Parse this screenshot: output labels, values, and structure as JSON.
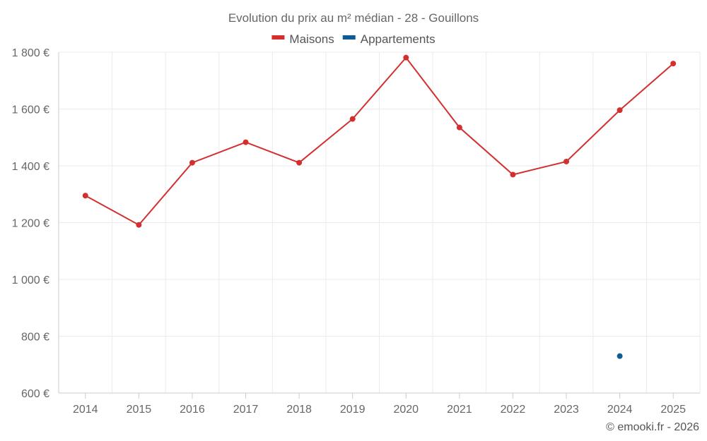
{
  "chart_data": {
    "type": "line",
    "title": "Evolution du prix au m² médian - 28 - Gouillons",
    "categories": [
      "2014",
      "2015",
      "2016",
      "2017",
      "2018",
      "2019",
      "2020",
      "2021",
      "2022",
      "2023",
      "2024",
      "2025"
    ],
    "series": [
      {
        "name": "Maisons",
        "color": "#d32f2f",
        "values": [
          1295,
          1192,
          1411,
          1483,
          1411,
          1565,
          1781,
          1535,
          1369,
          1415,
          1596,
          1760
        ]
      },
      {
        "name": "Appartements",
        "color": "#0b5c99",
        "values": [
          null,
          null,
          null,
          null,
          null,
          null,
          null,
          null,
          null,
          null,
          730,
          null
        ]
      }
    ],
    "ylim": [
      600,
      1800
    ],
    "y_ticks": [
      600,
      800,
      1000,
      1200,
      1400,
      1600,
      1800
    ],
    "y_tick_labels": [
      "600 €",
      "800 €",
      "1 000 €",
      "1 200 €",
      "1 400 €",
      "1 600 €",
      "1 800 €"
    ],
    "grid": true,
    "legend_position": "top-center",
    "xlabel": "",
    "ylabel": ""
  },
  "credit": "© emooki.fr - 2026"
}
